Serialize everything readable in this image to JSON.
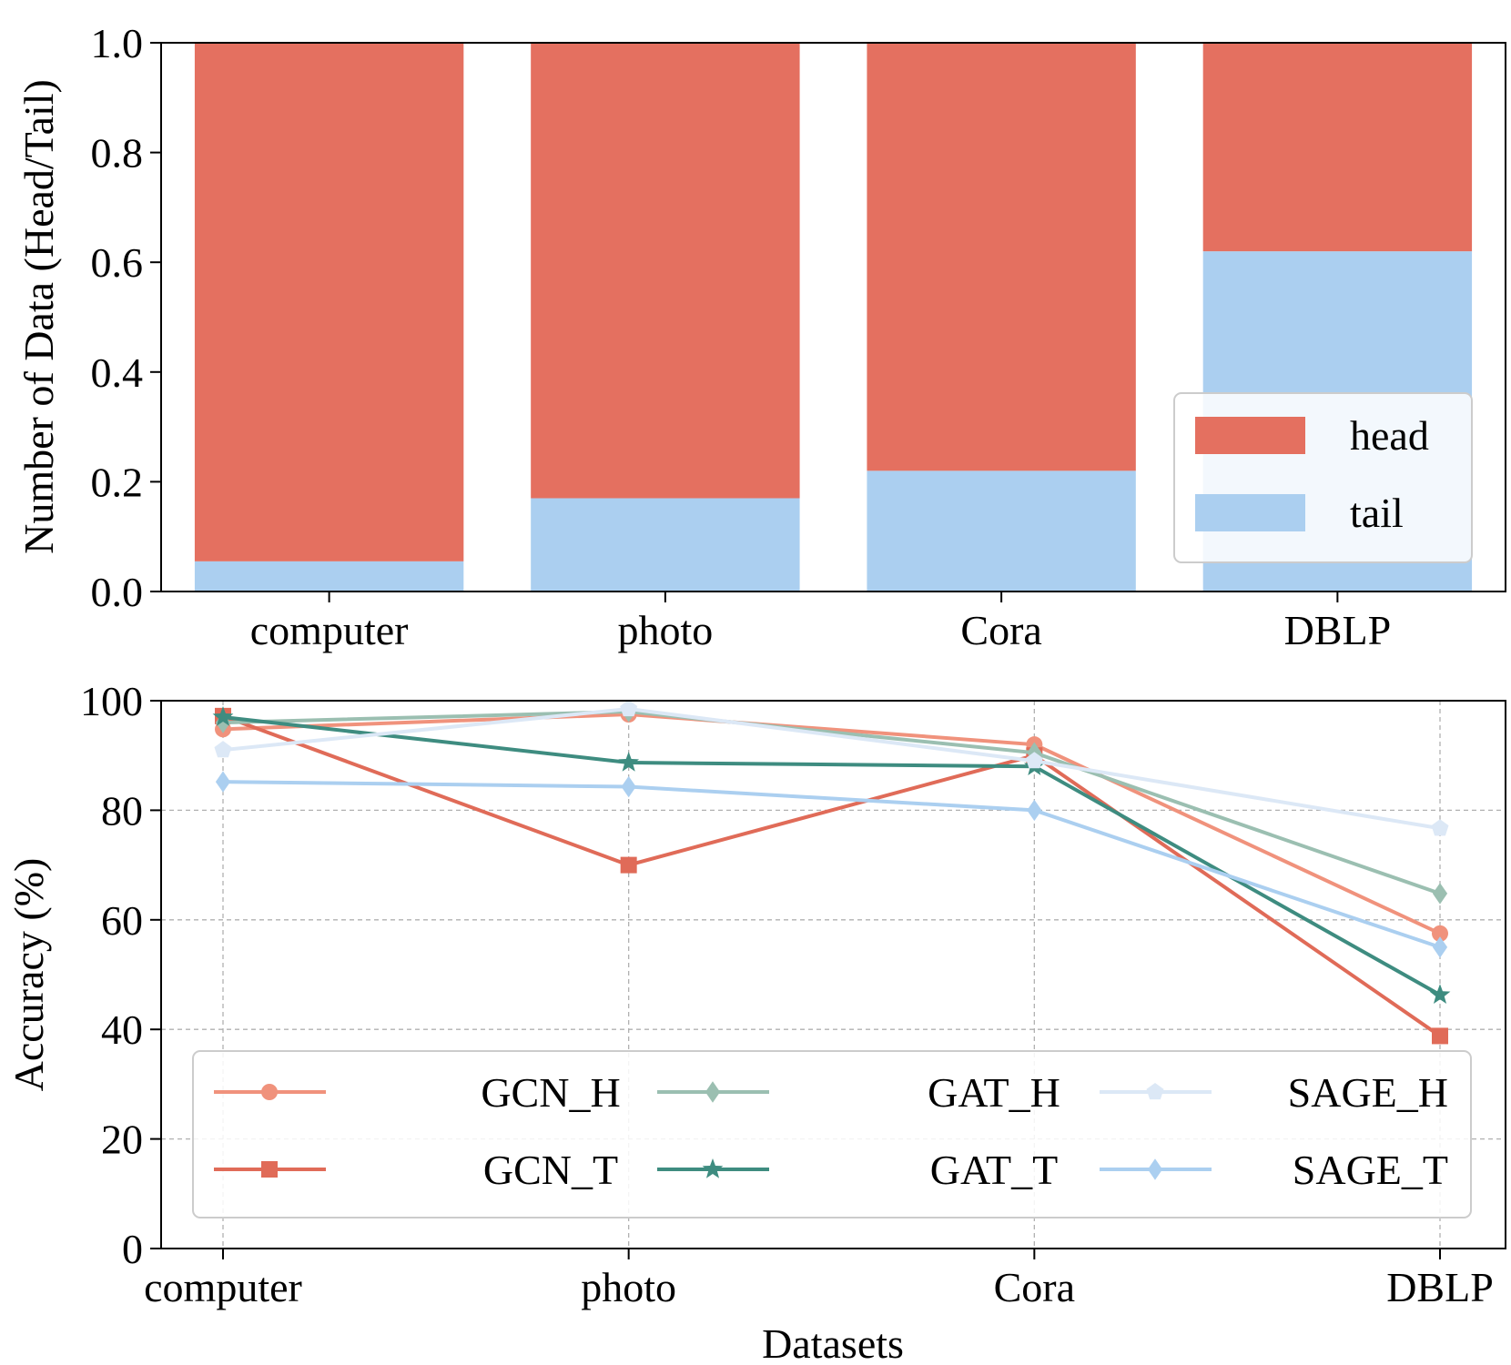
{
  "chart_data": [
    {
      "type": "bar",
      "stacked": true,
      "categories": [
        "computer",
        "photo",
        "Cora",
        "DBLP"
      ],
      "series": [
        {
          "name": "tail",
          "color": "#ABCFF0",
          "values": [
            0.055,
            0.17,
            0.22,
            0.62
          ]
        },
        {
          "name": "head",
          "color": "#E47060",
          "values": [
            0.945,
            0.83,
            0.78,
            0.38
          ]
        }
      ],
      "legend_order": [
        "head",
        "tail"
      ],
      "legend_position": "lower-right",
      "xlabel": "",
      "ylabel": "Number of Data (Head/Tail)",
      "ylim": [
        0,
        1
      ],
      "yticks": [
        "0.0",
        "0.2",
        "0.4",
        "0.6",
        "0.8",
        "1.0"
      ],
      "grid": false
    },
    {
      "type": "line",
      "categories": [
        "computer",
        "photo",
        "Cora",
        "DBLP"
      ],
      "series": [
        {
          "name": "GCN_H",
          "color": "#F0927C",
          "marker": "circle",
          "values": [
            94.8,
            97.5,
            92.0,
            57.5
          ]
        },
        {
          "name": "GCN_T",
          "color": "#E06B58",
          "marker": "square",
          "values": [
            97.2,
            70.0,
            90.0,
            38.8
          ]
        },
        {
          "name": "GAT_H",
          "color": "#9BBFB1",
          "marker": "diamond",
          "values": [
            96.0,
            98.0,
            90.5,
            64.8
          ]
        },
        {
          "name": "GAT_T",
          "color": "#3E8C80",
          "marker": "star",
          "values": [
            97.0,
            88.7,
            88.0,
            46.3
          ]
        },
        {
          "name": "SAGE_H",
          "color": "#DCE8F6",
          "marker": "pentagon",
          "values": [
            91.0,
            98.5,
            89.0,
            76.7
          ]
        },
        {
          "name": "SAGE_T",
          "color": "#ABCFF0",
          "marker": "diamond",
          "values": [
            85.2,
            84.3,
            80.0,
            55.0
          ]
        }
      ],
      "xlabel": "Datasets",
      "ylabel": "Accuracy (%)",
      "ylim": [
        0,
        100
      ],
      "yticks": [
        "0",
        "20",
        "40",
        "60",
        "80",
        "100"
      ],
      "grid": true,
      "legend_position": "lower-center",
      "legend_columns": 3
    }
  ]
}
